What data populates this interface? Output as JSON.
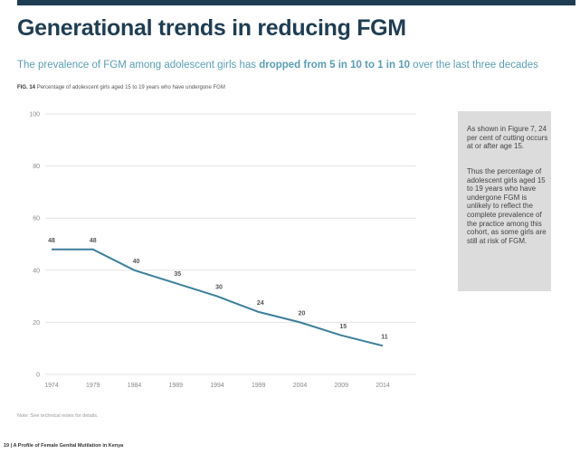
{
  "page": {
    "title": "Generational trends in reducing FGM",
    "subtitle_pre": "The prevalence of FGM among adolescent girls has ",
    "subtitle_bold": "dropped from 5 in 10 to 1 in 10",
    "subtitle_post": " over the last three decades",
    "fig_label": "FIG. 14",
    "fig_caption": "Percentage of adolescent girls aged 15 to 19 years who have undergone FGM",
    "sidebox_p1": "As shown in Figure 7, 24 per cent of cutting occurs at or after age 15.",
    "sidebox_p2": "Thus the percentage of adolescent girls aged 15 to 19 years who have undergone FGM is unlikely to reflect the complete prevalence of the practice among this cohort, as some girls are still at risk of FGM.",
    "note": "Note: See technical notes for details.",
    "footer": "19 | A Profile of Female Genital Mutilation in Kenya"
  },
  "colors": {
    "brand": "#1f3d52",
    "accent": "#5a9db2",
    "line": "#3b7f9a"
  },
  "chart_data": {
    "type": "line",
    "title": "Percentage of adolescent girls aged 15 to 19 years who have undergone FGM",
    "xlabel": "",
    "ylabel": "",
    "categories": [
      "1974",
      "1979",
      "1984",
      "1989",
      "1994",
      "1999",
      "2004",
      "2009",
      "2014"
    ],
    "series": [
      {
        "name": "Adolescent girls 15-19 who have undergone FGM (%)",
        "values": [
          48,
          48,
          40,
          35,
          30,
          24,
          20,
          15,
          11
        ]
      }
    ],
    "ylim": [
      0,
      100
    ],
    "yticks": [
      0,
      20,
      40,
      60,
      80,
      100
    ],
    "grid": true,
    "legend": "none"
  }
}
